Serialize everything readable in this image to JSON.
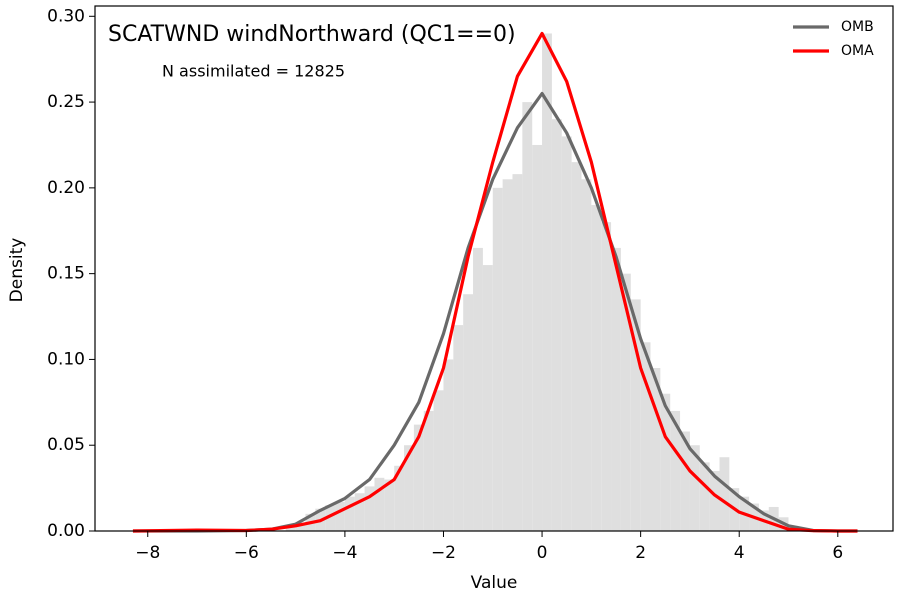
{
  "chart_data": {
    "type": "line",
    "title": "SCATWND windNorthward (QC1==0)",
    "annotation": "N assimilated = 12825",
    "xlabel": "Value",
    "ylabel": "Density",
    "xlim": [
      -9.07,
      7.12
    ],
    "ylim": [
      0,
      0.306
    ],
    "xticks": [
      {
        "value": -8,
        "label": "−8"
      },
      {
        "value": -6,
        "label": "−6"
      },
      {
        "value": -4,
        "label": "−4"
      },
      {
        "value": -2,
        "label": "−2"
      },
      0,
      2,
      4,
      6
    ],
    "yticks": [
      {
        "value": 0,
        "label": "0.00"
      },
      {
        "value": 0.05,
        "label": "0.05"
      },
      {
        "value": 0.1,
        "label": "0.10"
      },
      {
        "value": 0.15,
        "label": "0.15"
      },
      {
        "value": 0.2,
        "label": "0.20"
      },
      {
        "value": 0.25,
        "label": "0.25"
      },
      {
        "value": 0.3,
        "label": "0.30"
      }
    ],
    "legend": "upper right",
    "histogram": {
      "color": "#dfdfdf",
      "bins": [
        -5.2,
        -5.0,
        -4.8,
        -4.6,
        -4.4,
        -4.2,
        -4.0,
        -3.8,
        -3.6,
        -3.4,
        -3.2,
        -3.0,
        -2.8,
        -2.6,
        -2.4,
        -2.2,
        -2.0,
        -1.8,
        -1.6,
        -1.4,
        -1.2,
        -1.0,
        -0.8,
        -0.6,
        -0.4,
        -0.2,
        0,
        0.2,
        0.4,
        0.6,
        0.8,
        1.0,
        1.2,
        1.4,
        1.6,
        1.8,
        2.0,
        2.2,
        2.4,
        2.6,
        2.8,
        3.0,
        3.2,
        3.4,
        3.6,
        3.8,
        4.0,
        4.2,
        4.4,
        4.6,
        4.8,
        5.0,
        5.2
      ],
      "values": [
        0.003,
        0.005,
        0.01,
        0.013,
        0.015,
        0.017,
        0.02,
        0.022,
        0.026,
        0.031,
        0.03,
        0.038,
        0.05,
        0.062,
        0.07,
        0.082,
        0.1,
        0.12,
        0.138,
        0.165,
        0.155,
        0.2,
        0.205,
        0.208,
        0.25,
        0.225,
        0.29,
        0.24,
        0.23,
        0.215,
        0.205,
        0.19,
        0.18,
        0.165,
        0.15,
        0.135,
        0.11,
        0.095,
        0.08,
        0.07,
        0.058,
        0.05,
        0.04,
        0.035,
        0.043,
        0.025,
        0.02,
        0.016,
        0.012,
        0.014,
        0.008,
        0.003
      ]
    },
    "x": [
      -8.3,
      -7,
      -6,
      -5.5,
      -5,
      -4.5,
      -4,
      -3.5,
      -3,
      -2.5,
      -2,
      -1.5,
      -1,
      -0.5,
      0,
      0.5,
      1,
      1.5,
      2,
      2.5,
      3,
      3.5,
      4,
      4.5,
      5,
      5.5,
      6,
      6.4
    ],
    "series": [
      {
        "name": "OMB",
        "color": "#696969",
        "values": [
          0,
          0,
          0.0003,
          0.001,
          0.004,
          0.012,
          0.019,
          0.03,
          0.05,
          0.075,
          0.115,
          0.165,
          0.205,
          0.235,
          0.255,
          0.232,
          0.2,
          0.16,
          0.112,
          0.073,
          0.048,
          0.032,
          0.02,
          0.01,
          0.003,
          0.0003,
          0,
          0
        ]
      },
      {
        "name": "OMA",
        "color": "#ff0000",
        "values": [
          0,
          0.0005,
          0.0003,
          0.001,
          0.003,
          0.006,
          0.013,
          0.02,
          0.03,
          0.055,
          0.095,
          0.16,
          0.215,
          0.265,
          0.29,
          0.262,
          0.215,
          0.155,
          0.095,
          0.055,
          0.035,
          0.021,
          0.011,
          0.006,
          0.001,
          0.0002,
          0,
          0
        ]
      }
    ]
  }
}
